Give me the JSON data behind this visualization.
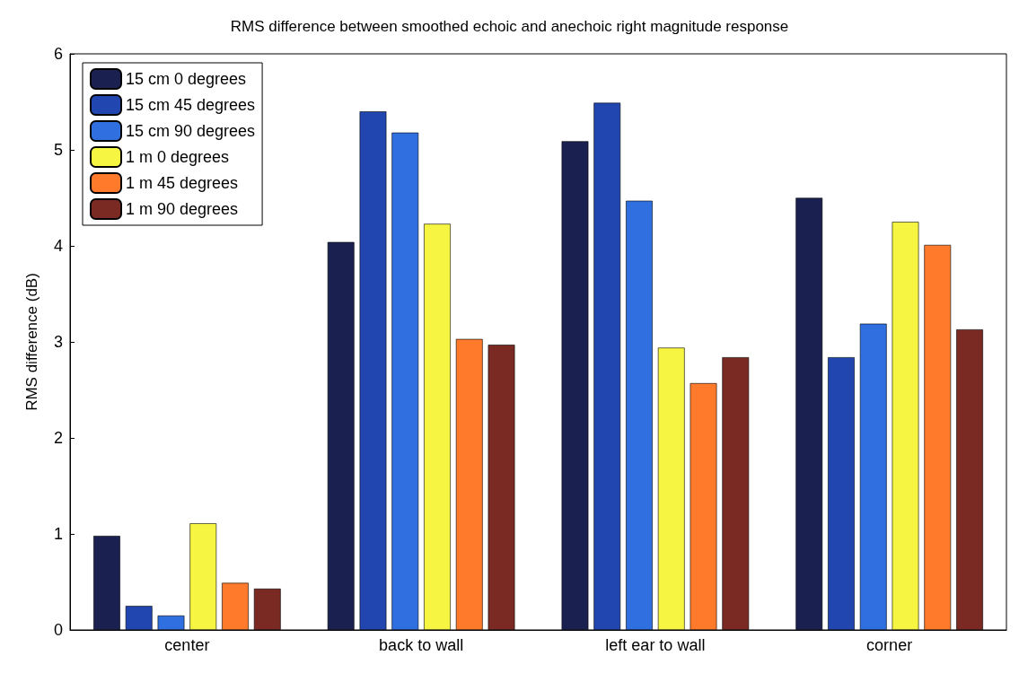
{
  "chart_data": {
    "type": "bar",
    "title": "RMS difference between smoothed echoic and anechoic right magnitude response",
    "ylabel": "RMS difference (dB)",
    "categories": [
      "center",
      "back to wall",
      "left ear to wall",
      "corner"
    ],
    "series": [
      {
        "name": "15 cm 0 degrees",
        "color": "#1a2050",
        "values": [
          0.98,
          4.04,
          5.09,
          4.5
        ]
      },
      {
        "name": "15 cm 45 degrees",
        "color": "#2146b0",
        "values": [
          0.25,
          5.4,
          5.49,
          2.84
        ]
      },
      {
        "name": "15 cm 90 degrees",
        "color": "#2f6fe0",
        "values": [
          0.15,
          5.18,
          4.47,
          3.19
        ]
      },
      {
        "name": "1 m 0 degrees",
        "color": "#f5f542",
        "values": [
          1.11,
          4.23,
          2.94,
          4.25
        ]
      },
      {
        "name": "1 m 45 degrees",
        "color": "#ff7a2a",
        "values": [
          0.49,
          3.03,
          2.57,
          4.01
        ]
      },
      {
        "name": "1 m 90 degrees",
        "color": "#7a2a22",
        "values": [
          0.43,
          2.97,
          2.84,
          3.13
        ]
      }
    ],
    "ylim": [
      0,
      6
    ],
    "yticks": [
      0,
      1,
      2,
      3,
      4,
      5,
      6
    ],
    "grid": false,
    "legend": "top left"
  }
}
